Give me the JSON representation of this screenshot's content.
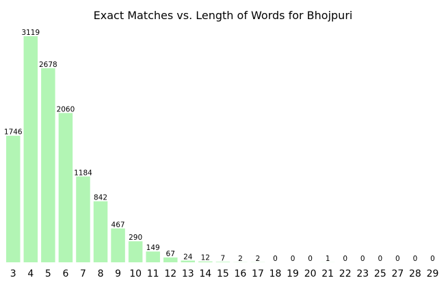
{
  "chart_data": {
    "type": "bar",
    "title": "Exact Matches vs. Length of Words for Bhojpuri",
    "xlabel": "",
    "ylabel": "",
    "categories": [
      "3",
      "4",
      "5",
      "6",
      "7",
      "8",
      "9",
      "10",
      "11",
      "12",
      "13",
      "14",
      "15",
      "16",
      "17",
      "18",
      "19",
      "20",
      "21",
      "22",
      "23",
      "25",
      "27",
      "28",
      "29"
    ],
    "values": [
      1746,
      3119,
      2678,
      2060,
      1184,
      842,
      467,
      290,
      149,
      67,
      24,
      12,
      7,
      2,
      2,
      0,
      0,
      0,
      1,
      0,
      0,
      0,
      0,
      0,
      0
    ],
    "ylim": [
      0,
      3119
    ],
    "grid": false,
    "bar_color": "#b2f5b4",
    "show_value_labels": true
  }
}
